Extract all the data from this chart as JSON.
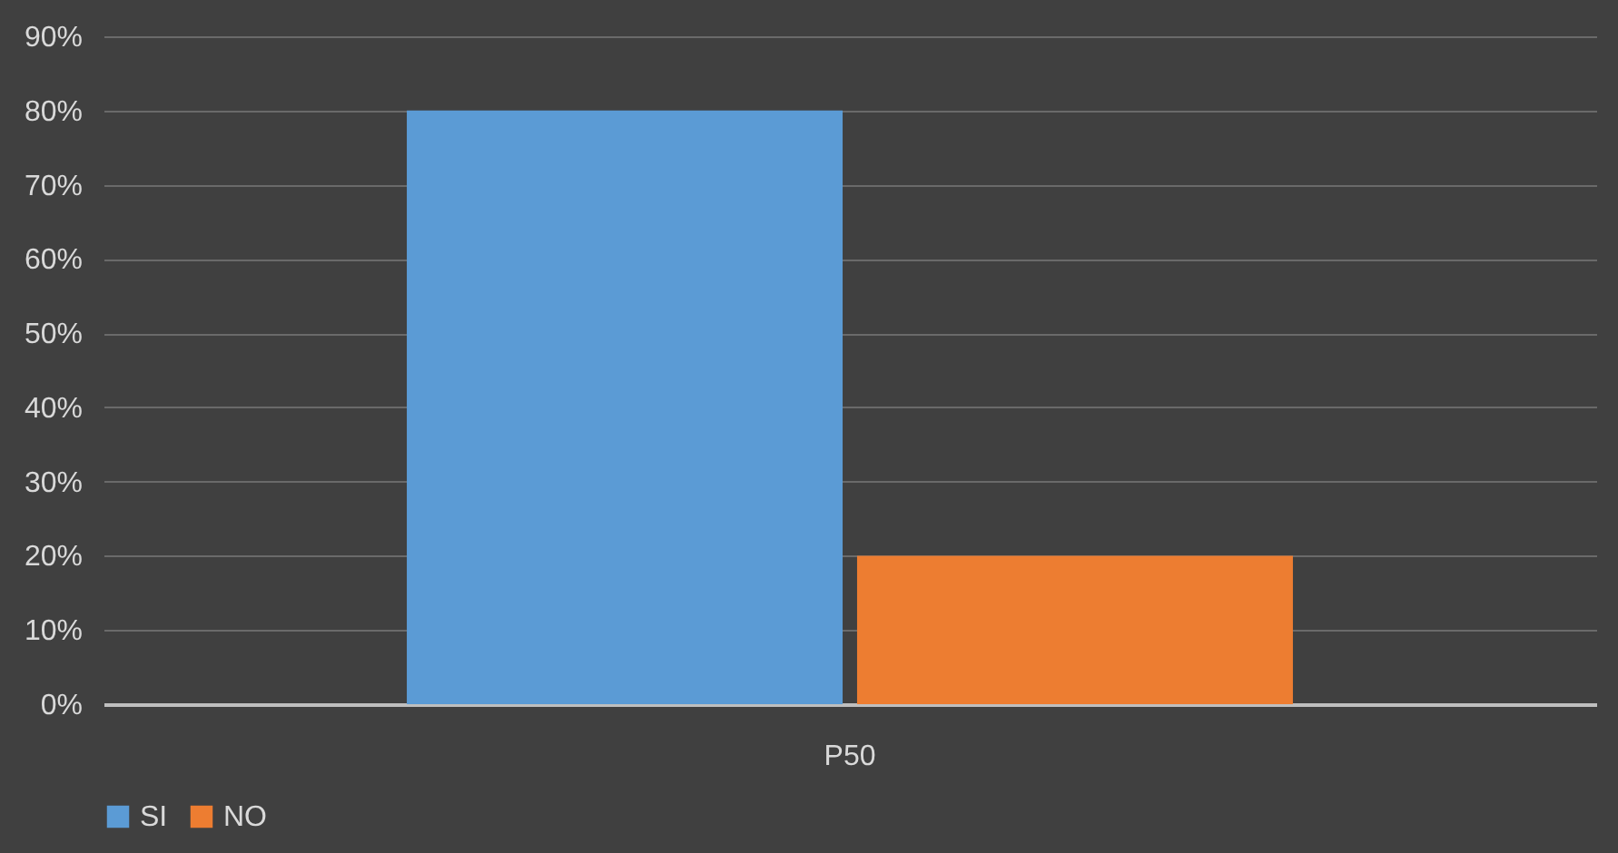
{
  "chart_data": {
    "type": "bar",
    "categories": [
      "P50"
    ],
    "series": [
      {
        "name": "SI",
        "color": "#5b9bd5",
        "values": [
          80
        ]
      },
      {
        "name": "NO",
        "color": "#ed7d31",
        "values": [
          20
        ]
      }
    ],
    "ylim": [
      0,
      90
    ],
    "yticks": [
      {
        "value": 0,
        "label": "0%"
      },
      {
        "value": 10,
        "label": "10%"
      },
      {
        "value": 20,
        "label": "20%"
      },
      {
        "value": 30,
        "label": "30%"
      },
      {
        "value": 40,
        "label": "40%"
      },
      {
        "value": 50,
        "label": "50%"
      },
      {
        "value": 60,
        "label": "60%"
      },
      {
        "value": 70,
        "label": "70%"
      },
      {
        "value": 80,
        "label": "80%"
      },
      {
        "value": 90,
        "label": "90%"
      }
    ],
    "grid": "y",
    "legend": "bottom"
  }
}
